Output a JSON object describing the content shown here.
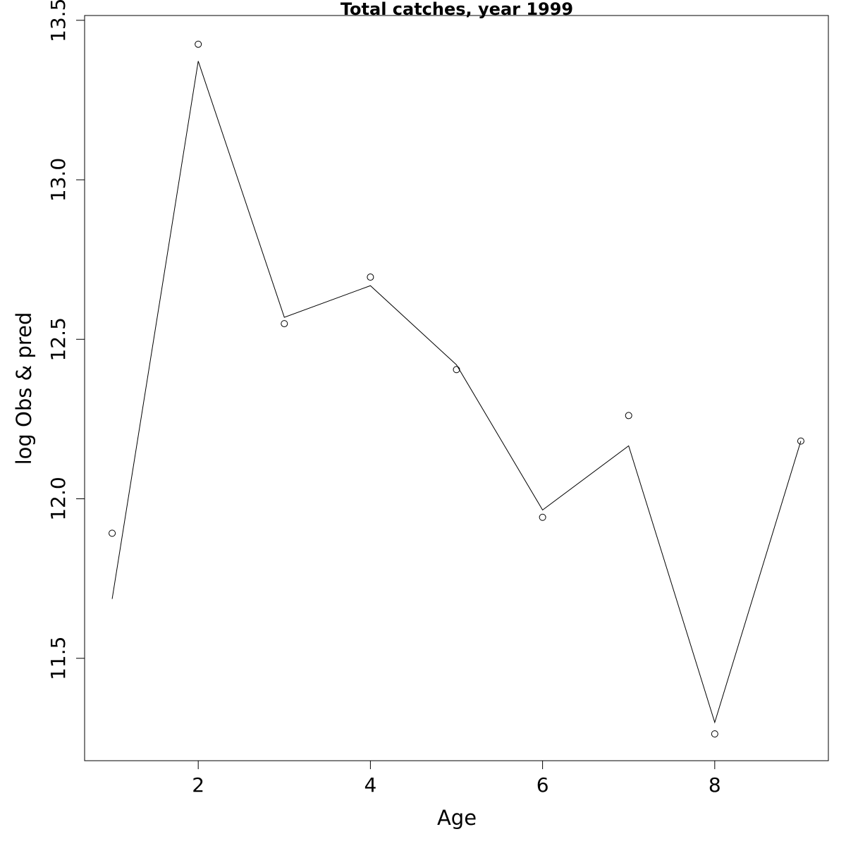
{
  "chart_data": {
    "type": "line",
    "title": "Total catches, year 1999",
    "x_label": "Age",
    "y_label": "log Obs & pred",
    "x": [
      1,
      2,
      3,
      4,
      5,
      6,
      7,
      8,
      9
    ],
    "series": [
      {
        "style": "points",
        "color": "#000000",
        "values": [
          11.892,
          13.425,
          12.549,
          12.695,
          12.405,
          11.942,
          12.261,
          11.263,
          12.181
        ]
      },
      {
        "style": "line",
        "color": "#000000",
        "values": [
          11.686,
          13.372,
          12.569,
          12.668,
          12.42,
          11.965,
          12.166,
          11.299,
          12.181
        ]
      }
    ],
    "xlim": [
      0.68,
      9.32
    ],
    "ylim": [
      11.179,
      13.515
    ],
    "xticks": [
      2,
      4,
      6,
      8
    ],
    "yticks": [
      11.5,
      {
        "value": 12,
        "label": "12.0"
      },
      12.5,
      {
        "value": 13,
        "label": "13.0"
      },
      13.5
    ],
    "grid": false
  }
}
